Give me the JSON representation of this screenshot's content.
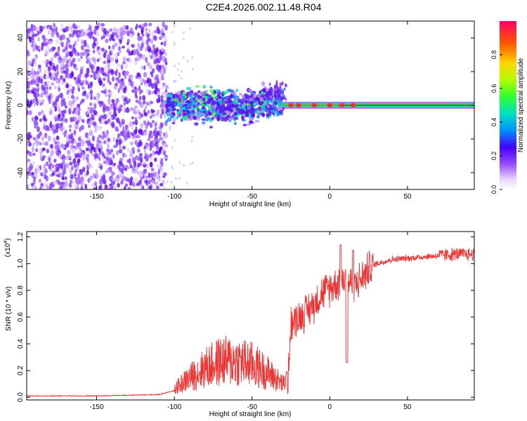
{
  "title": "C2E4.2026.002.11.48.R04",
  "chart_data": [
    {
      "type": "heatmap",
      "xlabel": "Height of straight line (km)",
      "ylabel": "Frequency (Hz)",
      "xlim": [
        -195,
        93
      ],
      "ylim": [
        -50,
        50
      ],
      "xticks": [
        -150,
        -100,
        -50,
        0,
        50
      ],
      "yticks": [
        -40,
        -20,
        0,
        20,
        40
      ],
      "colorbar": {
        "label": "Normalized spectral amplitude",
        "range": [
          0.0,
          1.0
        ],
        "ticks": [
          "0.0",
          "0.2",
          "0.4",
          "0.6",
          "0.8"
        ],
        "tick_values": [
          0.0,
          0.2,
          0.4,
          0.6,
          0.8
        ]
      },
      "regions": [
        {
          "description": "noise",
          "x_range": [
            -195,
            -105
          ],
          "freq_range": [
            -50,
            48
          ],
          "amplitude": 0.15
        },
        {
          "description": "onset",
          "x_range": [
            -105,
            -30
          ],
          "freq_range": [
            -8,
            8
          ],
          "amplitude": 0.4
        },
        {
          "description": "signal",
          "x_range": [
            -30,
            93
          ],
          "freq": 0,
          "amplitude": 1.0
        }
      ]
    },
    {
      "type": "line",
      "xlabel": "Height of straight line (km)",
      "ylabel": "SNR (10 * v/v)",
      "scale_label": "(x10",
      "scale_exp": "4",
      "scale_close": ")",
      "xlim": [
        -195,
        93
      ],
      "ylim": [
        -0.02,
        1.24
      ],
      "xticks": [
        -150,
        -100,
        -50,
        0,
        50
      ],
      "yticks": [
        0.0,
        0.2,
        0.4,
        0.6,
        0.8,
        1.0,
        1.2
      ],
      "ytick_labels": [
        "0.0",
        "0.2",
        "0.4",
        "0.6",
        "0.8",
        "1.0",
        "1.2"
      ],
      "series": [
        {
          "name": "SNR",
          "color": "#ee3333",
          "x": [
            -195,
            -150,
            -110,
            -100,
            -90,
            -80,
            -70,
            -60,
            -50,
            -40,
            -30,
            -27,
            -25,
            -20,
            -15,
            -10,
            -5,
            0,
            5,
            10,
            15,
            20,
            25,
            30,
            40,
            60,
            80,
            93
          ],
          "values": [
            0.01,
            0.01,
            0.02,
            0.05,
            0.12,
            0.18,
            0.22,
            0.22,
            0.2,
            0.15,
            0.08,
            0.12,
            0.55,
            0.6,
            0.64,
            0.7,
            0.78,
            0.82,
            0.86,
            0.88,
            0.85,
            0.88,
            0.96,
            1.0,
            1.03,
            1.05,
            1.07,
            1.07
          ]
        }
      ]
    }
  ]
}
